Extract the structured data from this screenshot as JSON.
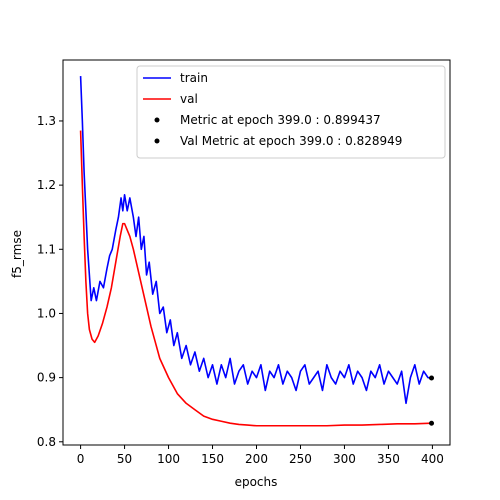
{
  "chart_data": {
    "type": "line",
    "xlabel": "epochs",
    "ylabel": "f5_rmse",
    "xlim": [
      -20,
      420
    ],
    "ylim": [
      0.795,
      1.395
    ],
    "xticks": [
      0,
      50,
      100,
      150,
      200,
      250,
      300,
      350,
      400
    ],
    "yticks": [
      0.8,
      0.9,
      1.0,
      1.1,
      1.2,
      1.3
    ],
    "ytick_labels": [
      "0.8",
      "0.9",
      "1.0",
      "1.1",
      "1.2",
      "1.3"
    ],
    "grid": false,
    "legend_position": "top-right",
    "series": [
      {
        "name": "train",
        "color": "#0000ff",
        "points": [
          [
            0,
            1.37
          ],
          [
            2,
            1.3
          ],
          [
            4,
            1.22
          ],
          [
            6,
            1.16
          ],
          [
            8,
            1.1
          ],
          [
            10,
            1.06
          ],
          [
            12,
            1.02
          ],
          [
            15,
            1.04
          ],
          [
            18,
            1.02
          ],
          [
            22,
            1.05
          ],
          [
            26,
            1.04
          ],
          [
            30,
            1.07
          ],
          [
            33,
            1.09
          ],
          [
            36,
            1.1
          ],
          [
            40,
            1.13
          ],
          [
            43,
            1.15
          ],
          [
            46,
            1.18
          ],
          [
            48,
            1.16
          ],
          [
            50,
            1.185
          ],
          [
            53,
            1.16
          ],
          [
            56,
            1.18
          ],
          [
            60,
            1.15
          ],
          [
            63,
            1.12
          ],
          [
            66,
            1.15
          ],
          [
            69,
            1.1
          ],
          [
            72,
            1.12
          ],
          [
            75,
            1.06
          ],
          [
            78,
            1.08
          ],
          [
            82,
            1.03
          ],
          [
            86,
            1.05
          ],
          [
            90,
            1.0
          ],
          [
            94,
            1.01
          ],
          [
            98,
            0.97
          ],
          [
            102,
            0.99
          ],
          [
            106,
            0.95
          ],
          [
            110,
            0.97
          ],
          [
            115,
            0.93
          ],
          [
            120,
            0.95
          ],
          [
            125,
            0.92
          ],
          [
            130,
            0.94
          ],
          [
            135,
            0.91
          ],
          [
            140,
            0.93
          ],
          [
            145,
            0.9
          ],
          [
            150,
            0.92
          ],
          [
            155,
            0.89
          ],
          [
            160,
            0.92
          ],
          [
            165,
            0.9
          ],
          [
            170,
            0.93
          ],
          [
            175,
            0.89
          ],
          [
            180,
            0.91
          ],
          [
            185,
            0.92
          ],
          [
            190,
            0.89
          ],
          [
            195,
            0.91
          ],
          [
            200,
            0.9
          ],
          [
            205,
            0.92
          ],
          [
            210,
            0.88
          ],
          [
            215,
            0.91
          ],
          [
            220,
            0.9
          ],
          [
            225,
            0.92
          ],
          [
            230,
            0.89
          ],
          [
            235,
            0.91
          ],
          [
            240,
            0.9
          ],
          [
            245,
            0.88
          ],
          [
            250,
            0.91
          ],
          [
            255,
            0.92
          ],
          [
            260,
            0.89
          ],
          [
            265,
            0.9
          ],
          [
            270,
            0.91
          ],
          [
            275,
            0.88
          ],
          [
            280,
            0.92
          ],
          [
            285,
            0.9
          ],
          [
            290,
            0.89
          ],
          [
            295,
            0.91
          ],
          [
            300,
            0.9
          ],
          [
            305,
            0.92
          ],
          [
            310,
            0.89
          ],
          [
            315,
            0.91
          ],
          [
            320,
            0.9
          ],
          [
            325,
            0.88
          ],
          [
            330,
            0.91
          ],
          [
            335,
            0.9
          ],
          [
            340,
            0.92
          ],
          [
            345,
            0.89
          ],
          [
            350,
            0.91
          ],
          [
            355,
            0.9
          ],
          [
            360,
            0.89
          ],
          [
            365,
            0.91
          ],
          [
            370,
            0.86
          ],
          [
            375,
            0.9
          ],
          [
            380,
            0.92
          ],
          [
            385,
            0.89
          ],
          [
            390,
            0.91
          ],
          [
            395,
            0.9
          ],
          [
            399,
            0.899
          ]
        ]
      },
      {
        "name": "val",
        "color": "#ff0000",
        "points": [
          [
            0,
            1.285
          ],
          [
            2,
            1.2
          ],
          [
            4,
            1.12
          ],
          [
            6,
            1.05
          ],
          [
            8,
            1.0
          ],
          [
            10,
            0.975
          ],
          [
            13,
            0.96
          ],
          [
            16,
            0.955
          ],
          [
            20,
            0.965
          ],
          [
            25,
            0.985
          ],
          [
            30,
            1.01
          ],
          [
            35,
            1.04
          ],
          [
            40,
            1.08
          ],
          [
            45,
            1.12
          ],
          [
            48,
            1.14
          ],
          [
            50,
            1.14
          ],
          [
            53,
            1.13
          ],
          [
            56,
            1.12
          ],
          [
            60,
            1.1
          ],
          [
            65,
            1.07
          ],
          [
            70,
            1.04
          ],
          [
            75,
            1.01
          ],
          [
            80,
            0.98
          ],
          [
            85,
            0.955
          ],
          [
            90,
            0.93
          ],
          [
            95,
            0.915
          ],
          [
            100,
            0.9
          ],
          [
            110,
            0.875
          ],
          [
            120,
            0.86
          ],
          [
            130,
            0.85
          ],
          [
            140,
            0.84
          ],
          [
            150,
            0.835
          ],
          [
            160,
            0.832
          ],
          [
            170,
            0.829
          ],
          [
            180,
            0.827
          ],
          [
            190,
            0.826
          ],
          [
            200,
            0.825
          ],
          [
            220,
            0.825
          ],
          [
            240,
            0.825
          ],
          [
            260,
            0.825
          ],
          [
            280,
            0.825
          ],
          [
            300,
            0.826
          ],
          [
            320,
            0.826
          ],
          [
            340,
            0.827
          ],
          [
            360,
            0.828
          ],
          [
            380,
            0.828
          ],
          [
            399,
            0.829
          ]
        ]
      }
    ],
    "markers": [
      {
        "name": "Metric at epoch 399.0 : 0.899437",
        "x": 399,
        "y": 0.899437,
        "color": "#000000"
      },
      {
        "name": "Val Metric at epoch 399.0 : 0.828949",
        "x": 399,
        "y": 0.828949,
        "color": "#000000"
      }
    ]
  }
}
